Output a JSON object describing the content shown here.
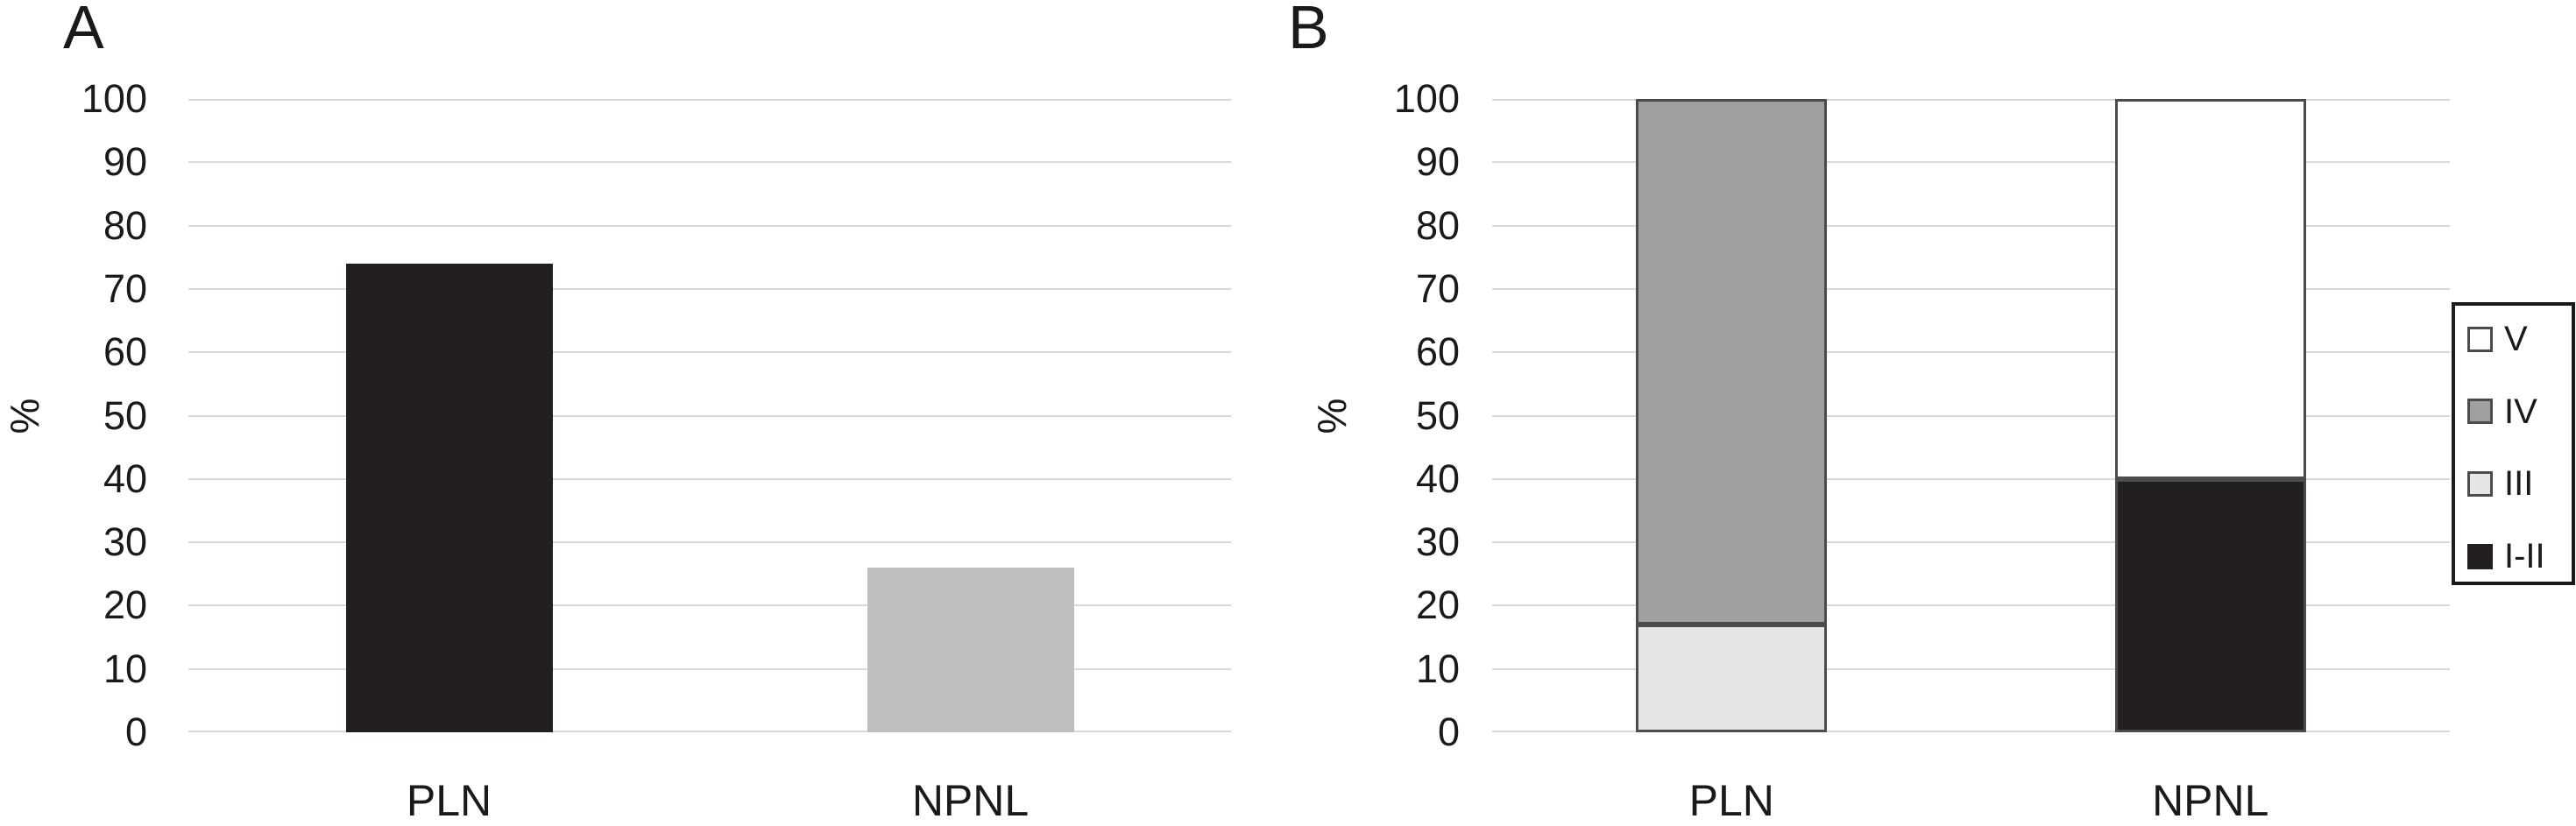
{
  "palette": {
    "black": "#231f20",
    "silver": "#bcbec0",
    "gray": "#9d9fa1",
    "light_gray": "#e5e6e8",
    "white": "#ffffff",
    "grid": "#d9d9d9",
    "segment_outline": "#4a4c4e",
    "text": "#1a1a1a"
  },
  "chart_data": [
    {
      "panel_label": "A",
      "type": "bar",
      "categories": [
        "PLN",
        "NPNL"
      ],
      "values": [
        74,
        26
      ],
      "bar_colors": [
        "#231f20",
        "#bcbec0"
      ],
      "title": "",
      "xlabel": "",
      "ylabel": "%",
      "ylim": [
        0,
        100
      ],
      "ytick_step": 10,
      "yticks": [
        0,
        10,
        20,
        30,
        40,
        50,
        60,
        70,
        80,
        90,
        100
      ],
      "grid": true,
      "legend": null
    },
    {
      "panel_label": "B",
      "type": "stacked-bar",
      "categories": [
        "PLN",
        "NPNL"
      ],
      "series": [
        {
          "name": "V",
          "color": "#ffffff",
          "values": [
            0,
            60
          ]
        },
        {
          "name": "IV",
          "color": "#9d9fa1",
          "values": [
            83,
            0
          ]
        },
        {
          "name": "III",
          "color": "#e5e6e8",
          "values": [
            17,
            0
          ]
        },
        {
          "name": "I-II",
          "color": "#231f20",
          "values": [
            0,
            40
          ]
        }
      ],
      "title": "",
      "xlabel": "",
      "ylabel": "%",
      "ylim": [
        0,
        100
      ],
      "ytick_step": 10,
      "yticks": [
        0,
        10,
        20,
        30,
        40,
        50,
        60,
        70,
        80,
        90,
        100
      ],
      "grid": true,
      "legend_position": "right",
      "legend_labels": [
        "V",
        "IV",
        "III",
        "I-II"
      ]
    }
  ]
}
